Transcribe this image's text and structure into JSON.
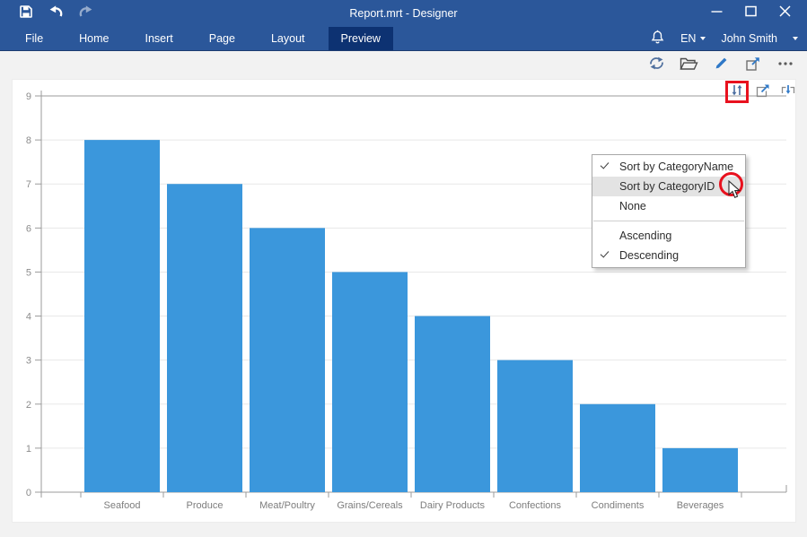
{
  "titlebar": {
    "title": "Report.mrt - Designer",
    "icons": [
      "save-icon",
      "undo-icon",
      "redo-icon",
      "minimize-icon",
      "maximize-icon",
      "close-icon"
    ]
  },
  "menubar": {
    "items": [
      {
        "label": "File"
      },
      {
        "label": "Home"
      },
      {
        "label": "Insert"
      },
      {
        "label": "Page"
      },
      {
        "label": "Layout"
      },
      {
        "label": "Preview",
        "selected": true
      }
    ],
    "language": "EN",
    "user": "John Smith",
    "icons": [
      "bell-icon",
      "caret-down-icon"
    ]
  },
  "toolbar": {
    "icons": [
      "refresh-icon",
      "open-icon",
      "edit-pencil-icon",
      "fullscreen-icon",
      "more-dots-icon"
    ]
  },
  "chart_toolbar": {
    "icons": [
      "sort-icon",
      "maximize-icon",
      "collapse-icon"
    ],
    "highlighted_icon": "sort-icon"
  },
  "sort_menu": {
    "items": [
      {
        "label": "Sort by CategoryName",
        "checked": true
      },
      {
        "label": "Sort by CategoryID",
        "highlighted": true
      },
      {
        "label": "None"
      },
      {
        "label": "Ascending"
      },
      {
        "label": "Descending",
        "checked": true
      }
    ],
    "separator_after_index": 2
  },
  "chart_data": {
    "type": "bar",
    "categories": [
      "Seafood",
      "Produce",
      "Meat/Poultry",
      "Grains/Cereals",
      "Dairy Products",
      "Confections",
      "Condiments",
      "Beverages"
    ],
    "values": [
      8,
      7,
      6,
      5,
      4,
      3,
      2,
      1
    ],
    "title": "",
    "xlabel": "",
    "ylabel": "",
    "ylim": [
      0,
      9
    ],
    "y_tick_step": 1,
    "grid": true,
    "legend": false,
    "bar_color": "#3b97dc"
  },
  "colors": {
    "accent": "#2b579a",
    "selected_tab": "#0d3272",
    "highlight_red": "#e8111e",
    "bar_blue": "#3b97dc",
    "icon_blue": "#2e78c7",
    "icon_slate": "#4a6da0"
  }
}
